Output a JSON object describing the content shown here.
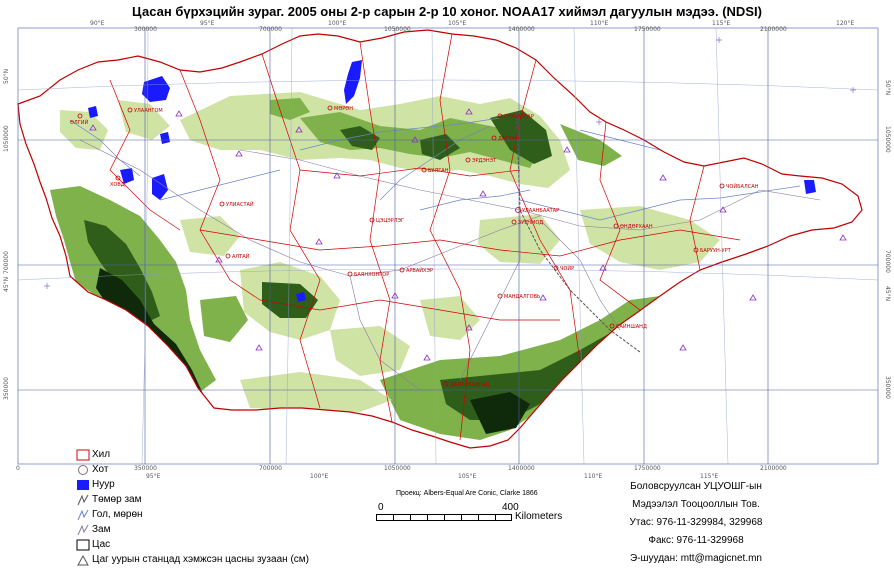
{
  "title": "Цасан бүрхэцийн зураг. 2005 оны 2-р сарын 2-р 10 хоног. NOAA17 хиймэл дагуулын мэдээ. (NDSI)",
  "colors": {
    "snow": "#ffffff",
    "vegetation_light": "#cfe3a5",
    "vegetation_mid": "#7fb24a",
    "vegetation_dark": "#2f5e1a",
    "vegetation_black": "#0f2a0a",
    "lake": "#1a1aff",
    "border": "#d40000",
    "river": "#6a86c8",
    "grid": "#4a5aa8",
    "station": "#8b2fc9"
  },
  "grid": {
    "top_labels": [
      "90°E",
      "300000",
      "95°E",
      "700000",
      "100°E",
      "1050000",
      "105°E",
      "1400000",
      "110°E",
      "1750000",
      "115°E",
      "2100000",
      "120°E"
    ],
    "bottom_labels": [
      "0",
      "350000",
      "95°E",
      "700000",
      "100°E",
      "1050000",
      "105°E",
      "1400000",
      "110°E",
      "1750000",
      "115°E",
      "2100000"
    ],
    "left_labels": [
      "50°N",
      "1050000",
      "700000",
      "45°N",
      "350000"
    ],
    "right_labels": [
      "50°N",
      "1050000",
      "700000",
      "45°N",
      "350000"
    ]
  },
  "cities": [
    "УЛААНБААТАР",
    "ЭРДЭНЭТ",
    "ДАРХАН",
    "МӨРӨН",
    "УЛААНГОМ",
    "ХОВД",
    "УЛИАСТАЙ",
    "АЛТАЙ",
    "БАЯНХОНГОР",
    "АРВАЙХЭР",
    "ЦЭЦЭРЛЭГ",
    "БУЛГАН",
    "ЗУУНМОД",
    "МАНДАЛГОВЬ",
    "ДАЛАНЗАДГАД",
    "САЙНШАНД",
    "ЧОЙР",
    "ЧОЙБАЛСАН",
    "ӨНДӨРХААН",
    "БАРУУН-УРТ",
    "ӨЛГИЙ",
    "СҮХБААТАР"
  ],
  "legend": [
    {
      "label": "Хил",
      "icon": "border-square"
    },
    {
      "label": "Хот",
      "icon": "city-circle"
    },
    {
      "label": "Нуур",
      "icon": "lake-square"
    },
    {
      "label": "Төмөр зам",
      "icon": "railway-line"
    },
    {
      "label": "Гол, мөрөн",
      "icon": "river-line"
    },
    {
      "label": "Зам",
      "icon": "road-line"
    },
    {
      "label": "Цас",
      "icon": "snow-square"
    },
    {
      "label": "Цаг уурын станцад хэмжсэн цасны зузаан (см)",
      "icon": "station-triangle"
    }
  ],
  "projection": "Проекц: Albers-Equal Are Conic, Clarke 1866",
  "scale": {
    "start": "0",
    "end": "400",
    "unit": "Kilometers"
  },
  "credits": [
    "Боловсруулсан УЦУОШГ-ын",
    "Мэдээлэл Тооцооллын Тов.",
    "Утас: 976-11-329984, 329968",
    "Факс: 976-11-329968",
    "Э-шуудан: mtt@magicnet.mn"
  ]
}
